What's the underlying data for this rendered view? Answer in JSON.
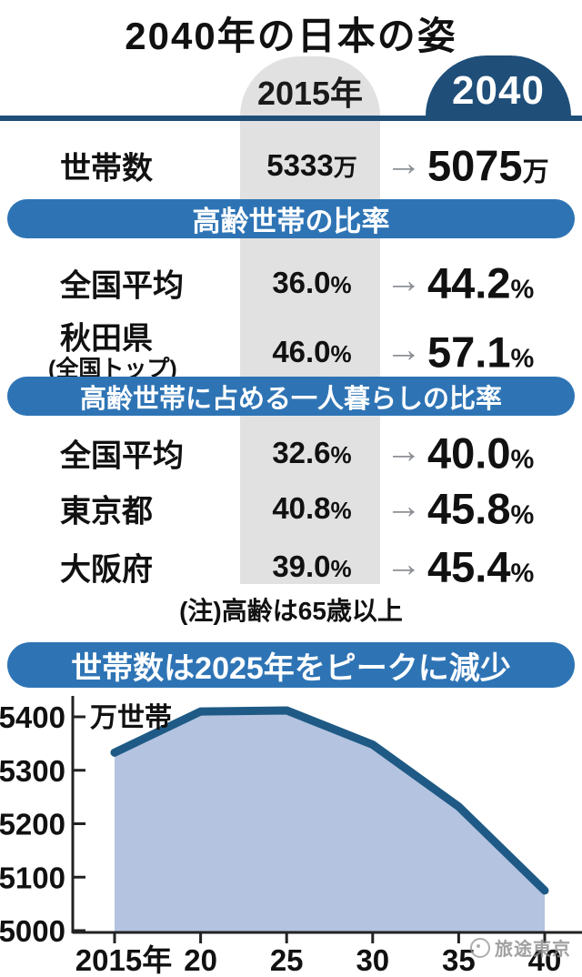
{
  "page": {
    "title": "2040年の日本の姿",
    "note": "(注)高齢は65歳以上",
    "watermark": "旅途東京"
  },
  "columns": {
    "y2015": "2015年",
    "y2040": "2040"
  },
  "ui": {
    "arrow": "→"
  },
  "colors": {
    "navy": "#1f4e79",
    "banner_blue": "#2e74b5",
    "stripe_gray": "#e1e1e1",
    "arrow_gray": "#8d9195",
    "chart_line": "#1e5a85",
    "chart_fill": "#b4c3e0"
  },
  "table": {
    "banners": [
      "高齢世帯の比率",
      "高齢世帯に占める一人暮らしの比率"
    ],
    "rows": [
      {
        "label": "世帯数",
        "sublabel": "",
        "v2015": "5333",
        "u2015": "万",
        "v2040": "5075",
        "u2040": "万"
      },
      {
        "label": "全国平均",
        "sublabel": "",
        "v2015": "36.0",
        "u2015": "%",
        "v2040": "44.2",
        "u2040": "%"
      },
      {
        "label": "秋田県",
        "sublabel": "(全国トップ)",
        "v2015": "46.0",
        "u2015": "%",
        "v2040": "57.1",
        "u2040": "%"
      },
      {
        "label": "全国平均",
        "sublabel": "",
        "v2015": "32.6",
        "u2015": "%",
        "v2040": "40.0",
        "u2040": "%"
      },
      {
        "label": "東京都",
        "sublabel": "",
        "v2015": "40.8",
        "u2015": "%",
        "v2040": "45.8",
        "u2040": "%"
      },
      {
        "label": "大阪府",
        "sublabel": "",
        "v2015": "39.0",
        "u2015": "%",
        "v2040": "45.4",
        "u2040": "%"
      }
    ]
  },
  "chart_data": {
    "type": "area",
    "title": "世帯数は2025年をピークに減少",
    "ylabel": "万世帯",
    "x": [
      2015,
      2020,
      2025,
      2030,
      2035,
      2040
    ],
    "x_tick_labels": [
      "2015年",
      "20",
      "25",
      "30",
      "35",
      "40"
    ],
    "values": [
      5333,
      5410,
      5412,
      5348,
      5232,
      5075
    ],
    "yticks": [
      5000,
      5100,
      5200,
      5300,
      5400
    ],
    "ylim": [
      5000,
      5450
    ],
    "grid": false,
    "legend": false,
    "line_color": "#1e5a85",
    "fill_color": "#b4c3e0"
  }
}
